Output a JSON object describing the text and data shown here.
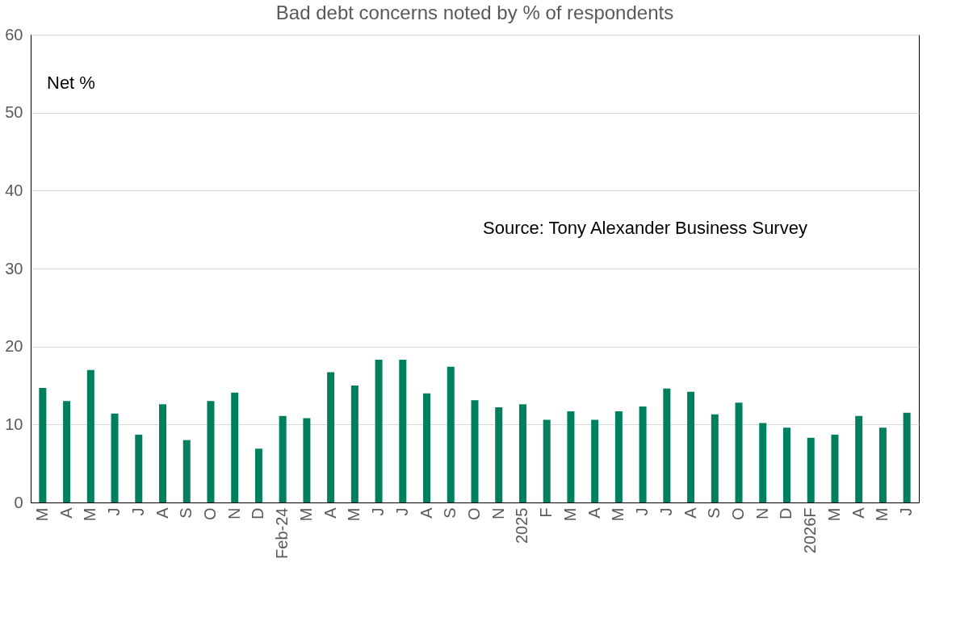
{
  "chart_data": {
    "type": "bar",
    "title": "Bad debt concerns noted by % of respondents",
    "categories": [
      "M",
      "A",
      "M",
      "J",
      "J",
      "A",
      "S",
      "O",
      "N",
      "D",
      "Feb-24",
      "M",
      "A",
      "M",
      "J",
      "J",
      "A",
      "S",
      "O",
      "N",
      "2025",
      "F",
      "M",
      "A",
      "M",
      "J",
      "J",
      "A",
      "S",
      "O",
      "N",
      "D",
      "2026F",
      "M",
      "A",
      "M",
      "J"
    ],
    "values": [
      14.7,
      13,
      17,
      11.4,
      8.7,
      12.6,
      8,
      13,
      14.1,
      6.9,
      11.1,
      10.8,
      16.7,
      15,
      18.3,
      18.3,
      14,
      17.4,
      13.1,
      12.2,
      12.6,
      10.6,
      11.7,
      10.6,
      11.7,
      12.3,
      14.6,
      14.2,
      11.3,
      12.8,
      10.2,
      9.6,
      8.3,
      8.7,
      11.1,
      9.6,
      11.5
    ],
    "color": "#007f5f",
    "ylim": [
      0,
      60
    ],
    "yticks": [
      0,
      10,
      20,
      30,
      40,
      50,
      60
    ],
    "grid": "y",
    "annotations": [
      "Net %",
      "Source: Tony Alexander Business Survey"
    ]
  }
}
